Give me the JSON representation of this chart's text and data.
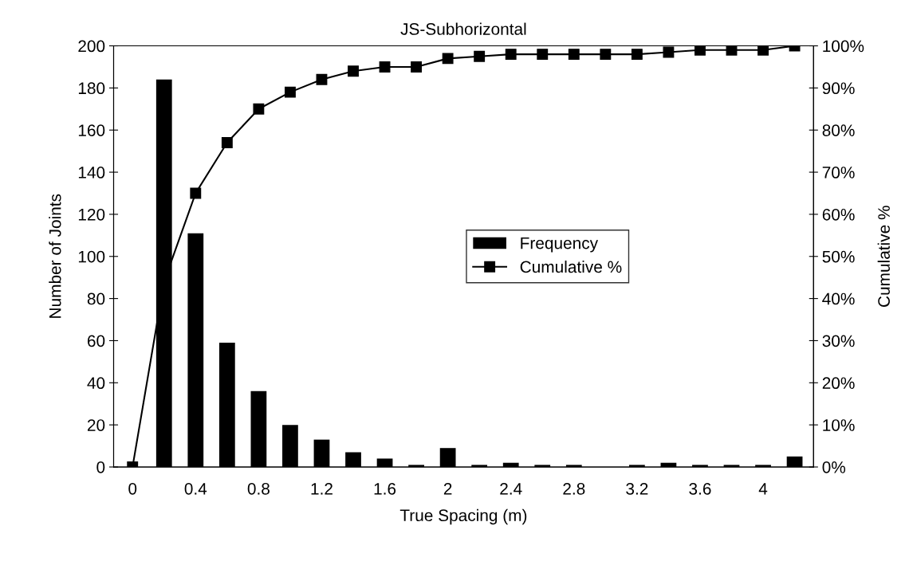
{
  "chart_data": {
    "type": "bar",
    "title": "JS-Subhorizontal",
    "xlabel": "True Spacing (m)",
    "ylabel": "Number of Joints",
    "y2label": "Cumulative %",
    "categories": [
      "0",
      null,
      "0.4",
      null,
      "0.8",
      null,
      "1.2",
      null,
      "1.6",
      null,
      "2",
      null,
      "2.4",
      null,
      "2.8",
      null,
      "3.2",
      null,
      "3.6",
      null,
      "4",
      null
    ],
    "series": [
      {
        "name": "Frequency",
        "color": "#000000",
        "values": [
          0,
          184,
          111,
          59,
          36,
          20,
          13,
          7,
          4,
          1,
          9,
          1,
          2,
          1,
          1,
          0,
          1,
          2,
          1,
          1,
          1,
          5
        ]
      },
      {
        "name": "Cumulative %",
        "type": "line",
        "axis": "y2",
        "color": "#000000",
        "marker": "square",
        "line_style": "solid",
        "values": [
          0,
          44,
          65,
          77,
          85,
          89,
          92,
          94,
          95,
          95,
          97,
          97.5,
          98,
          98,
          98,
          98,
          98,
          98.5,
          99,
          99,
          99,
          100
        ]
      }
    ],
    "ylim": [
      0,
      200
    ],
    "yticks": [
      0,
      20,
      40,
      60,
      80,
      100,
      120,
      140,
      160,
      180,
      200
    ],
    "y2lim": [
      0,
      100
    ],
    "y2ticks": [
      {
        "value": 0,
        "label": "0%"
      },
      {
        "value": 10,
        "label": "10%"
      },
      {
        "value": 20,
        "label": "20%"
      },
      {
        "value": 30,
        "label": "30%"
      },
      {
        "value": 40,
        "label": "40%"
      },
      {
        "value": 50,
        "label": "50%"
      },
      {
        "value": 60,
        "label": "60%"
      },
      {
        "value": 70,
        "label": "70%"
      },
      {
        "value": 80,
        "label": "80%"
      },
      {
        "value": 90,
        "label": "90%"
      },
      {
        "value": 100,
        "label": "100%"
      }
    ],
    "grid": false,
    "legend": "center"
  }
}
